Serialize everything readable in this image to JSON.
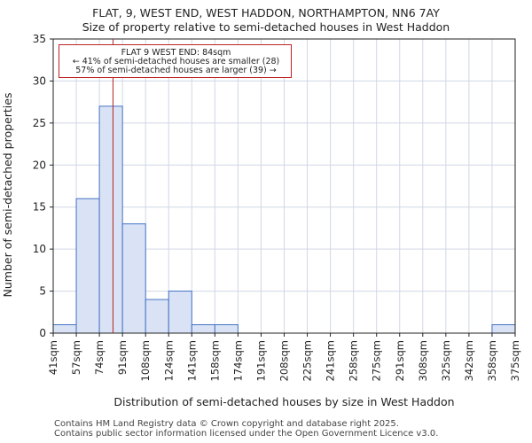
{
  "chart_data": {
    "type": "bar",
    "title": "FLAT, 9, WEST END, WEST HADDON, NORTHAMPTON, NN6 7AY",
    "subtitle": "Size of property relative to semi-detached houses in West Haddon",
    "xlabel": "Distribution of semi-detached houses by size in West Haddon",
    "ylabel": "Number of semi-detached properties",
    "bin_edges": [
      41,
      57,
      74,
      91,
      108,
      124,
      141,
      158,
      174,
      191,
      208,
      225,
      241,
      258,
      275,
      291,
      308,
      325,
      342,
      358,
      375
    ],
    "tick_labels": [
      "41sqm",
      "57sqm",
      "74sqm",
      "91sqm",
      "108sqm",
      "124sqm",
      "141sqm",
      "158sqm",
      "174sqm",
      "191sqm",
      "208sqm",
      "225sqm",
      "241sqm",
      "258sqm",
      "275sqm",
      "291sqm",
      "308sqm",
      "325sqm",
      "342sqm",
      "358sqm",
      "375sqm"
    ],
    "values": [
      1,
      16,
      27,
      13,
      4,
      5,
      1,
      1,
      0,
      0,
      0,
      0,
      0,
      0,
      0,
      0,
      0,
      0,
      0,
      1
    ],
    "ylim": [
      0,
      35
    ],
    "yticks": [
      0,
      5,
      10,
      15,
      20,
      25,
      30,
      35
    ],
    "marker_value": 84,
    "grid": true,
    "annotation": {
      "line1": "FLAT 9 WEST END: 84sqm",
      "line2": "← 41% of semi-detached houses are smaller (28)",
      "line3": "57% of semi-detached houses are larger (39) →"
    },
    "colors": {
      "bar_fill": "#dae3f5",
      "bar_edge": "#4472c4",
      "marker": "#b22222",
      "grid": "#d0d7e4"
    }
  },
  "footer": {
    "line1": "Contains HM Land Registry data © Crown copyright and database right 2025.",
    "line2": "Contains public sector information licensed under the Open Government Licence v3.0."
  }
}
